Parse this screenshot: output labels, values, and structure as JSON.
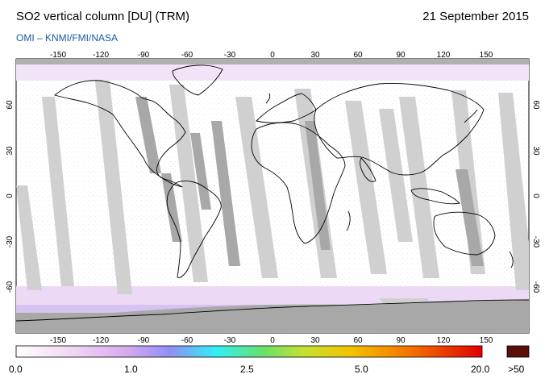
{
  "header": {
    "title": "SO2 vertical column [DU] (TRM)",
    "subtitle": "OMI  –  KNMI/FMI/NASA",
    "date": "21 September 2015"
  },
  "map": {
    "lon_ticks": [
      "-150",
      "-120",
      "-90",
      "-60",
      "-30",
      "0",
      "30",
      "60",
      "90",
      "120",
      "150"
    ],
    "lat_ticks": [
      "60",
      "30",
      "0",
      "-30",
      "-60"
    ],
    "colors": {
      "background": "#ffffff",
      "swath_gap": "#d0d0d0",
      "polar_night": "#a8a8a8",
      "coast": "#000000",
      "low_so2": "#e6d4f3"
    }
  },
  "colorbar": {
    "labels": [
      "0.0",
      "1.0",
      "2.5",
      "5.0",
      "20.0"
    ],
    "overflow_label": ">50",
    "overflow_color": "#5a0f0b",
    "gradient": [
      "#ffffff",
      "#f1d6f4",
      "#d5a8ef",
      "#8f8ff7",
      "#30f0f6",
      "#6ae06a",
      "#c7e030",
      "#f2c200",
      "#f57000",
      "#e00000"
    ]
  }
}
